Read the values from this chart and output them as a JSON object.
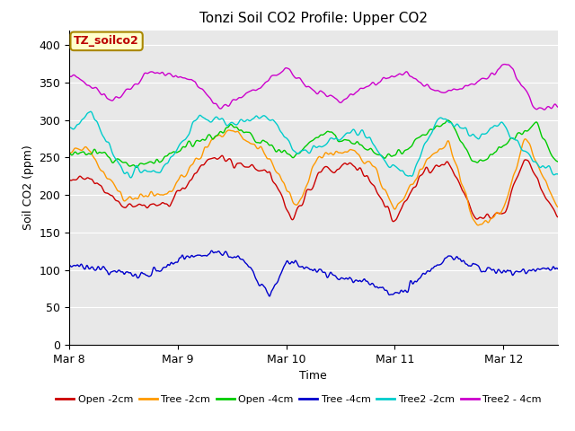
{
  "title": "Tonzi Soil CO2 Profile: Upper CO2",
  "xlabel": "Time",
  "ylabel": "Soil CO2 (ppm)",
  "ylim": [
    0,
    420
  ],
  "yticks": [
    0,
    50,
    100,
    150,
    200,
    250,
    300,
    350,
    400
  ],
  "annotation_text": "TZ_soilco2",
  "annotation_color": "#bb0000",
  "annotation_bg": "#ffffcc",
  "annotation_border": "#aa8800",
  "series": [
    {
      "label": "Open -2cm",
      "color": "#cc0000"
    },
    {
      "label": "Tree -2cm",
      "color": "#ff9900"
    },
    {
      "label": "Open -4cm",
      "color": "#00cc00"
    },
    {
      "label": "Tree -4cm",
      "color": "#0000cc"
    },
    {
      "label": "Tree2 -2cm",
      "color": "#00cccc"
    },
    {
      "label": "Tree2 - 4cm",
      "color": "#cc00cc"
    }
  ],
  "xticklabels": [
    "Mar 8",
    "Mar 9",
    "Mar 10",
    "Mar 11",
    "Mar 12"
  ],
  "n_points": 1000,
  "time_days": 4.5,
  "background_color": "#e8e8e8"
}
